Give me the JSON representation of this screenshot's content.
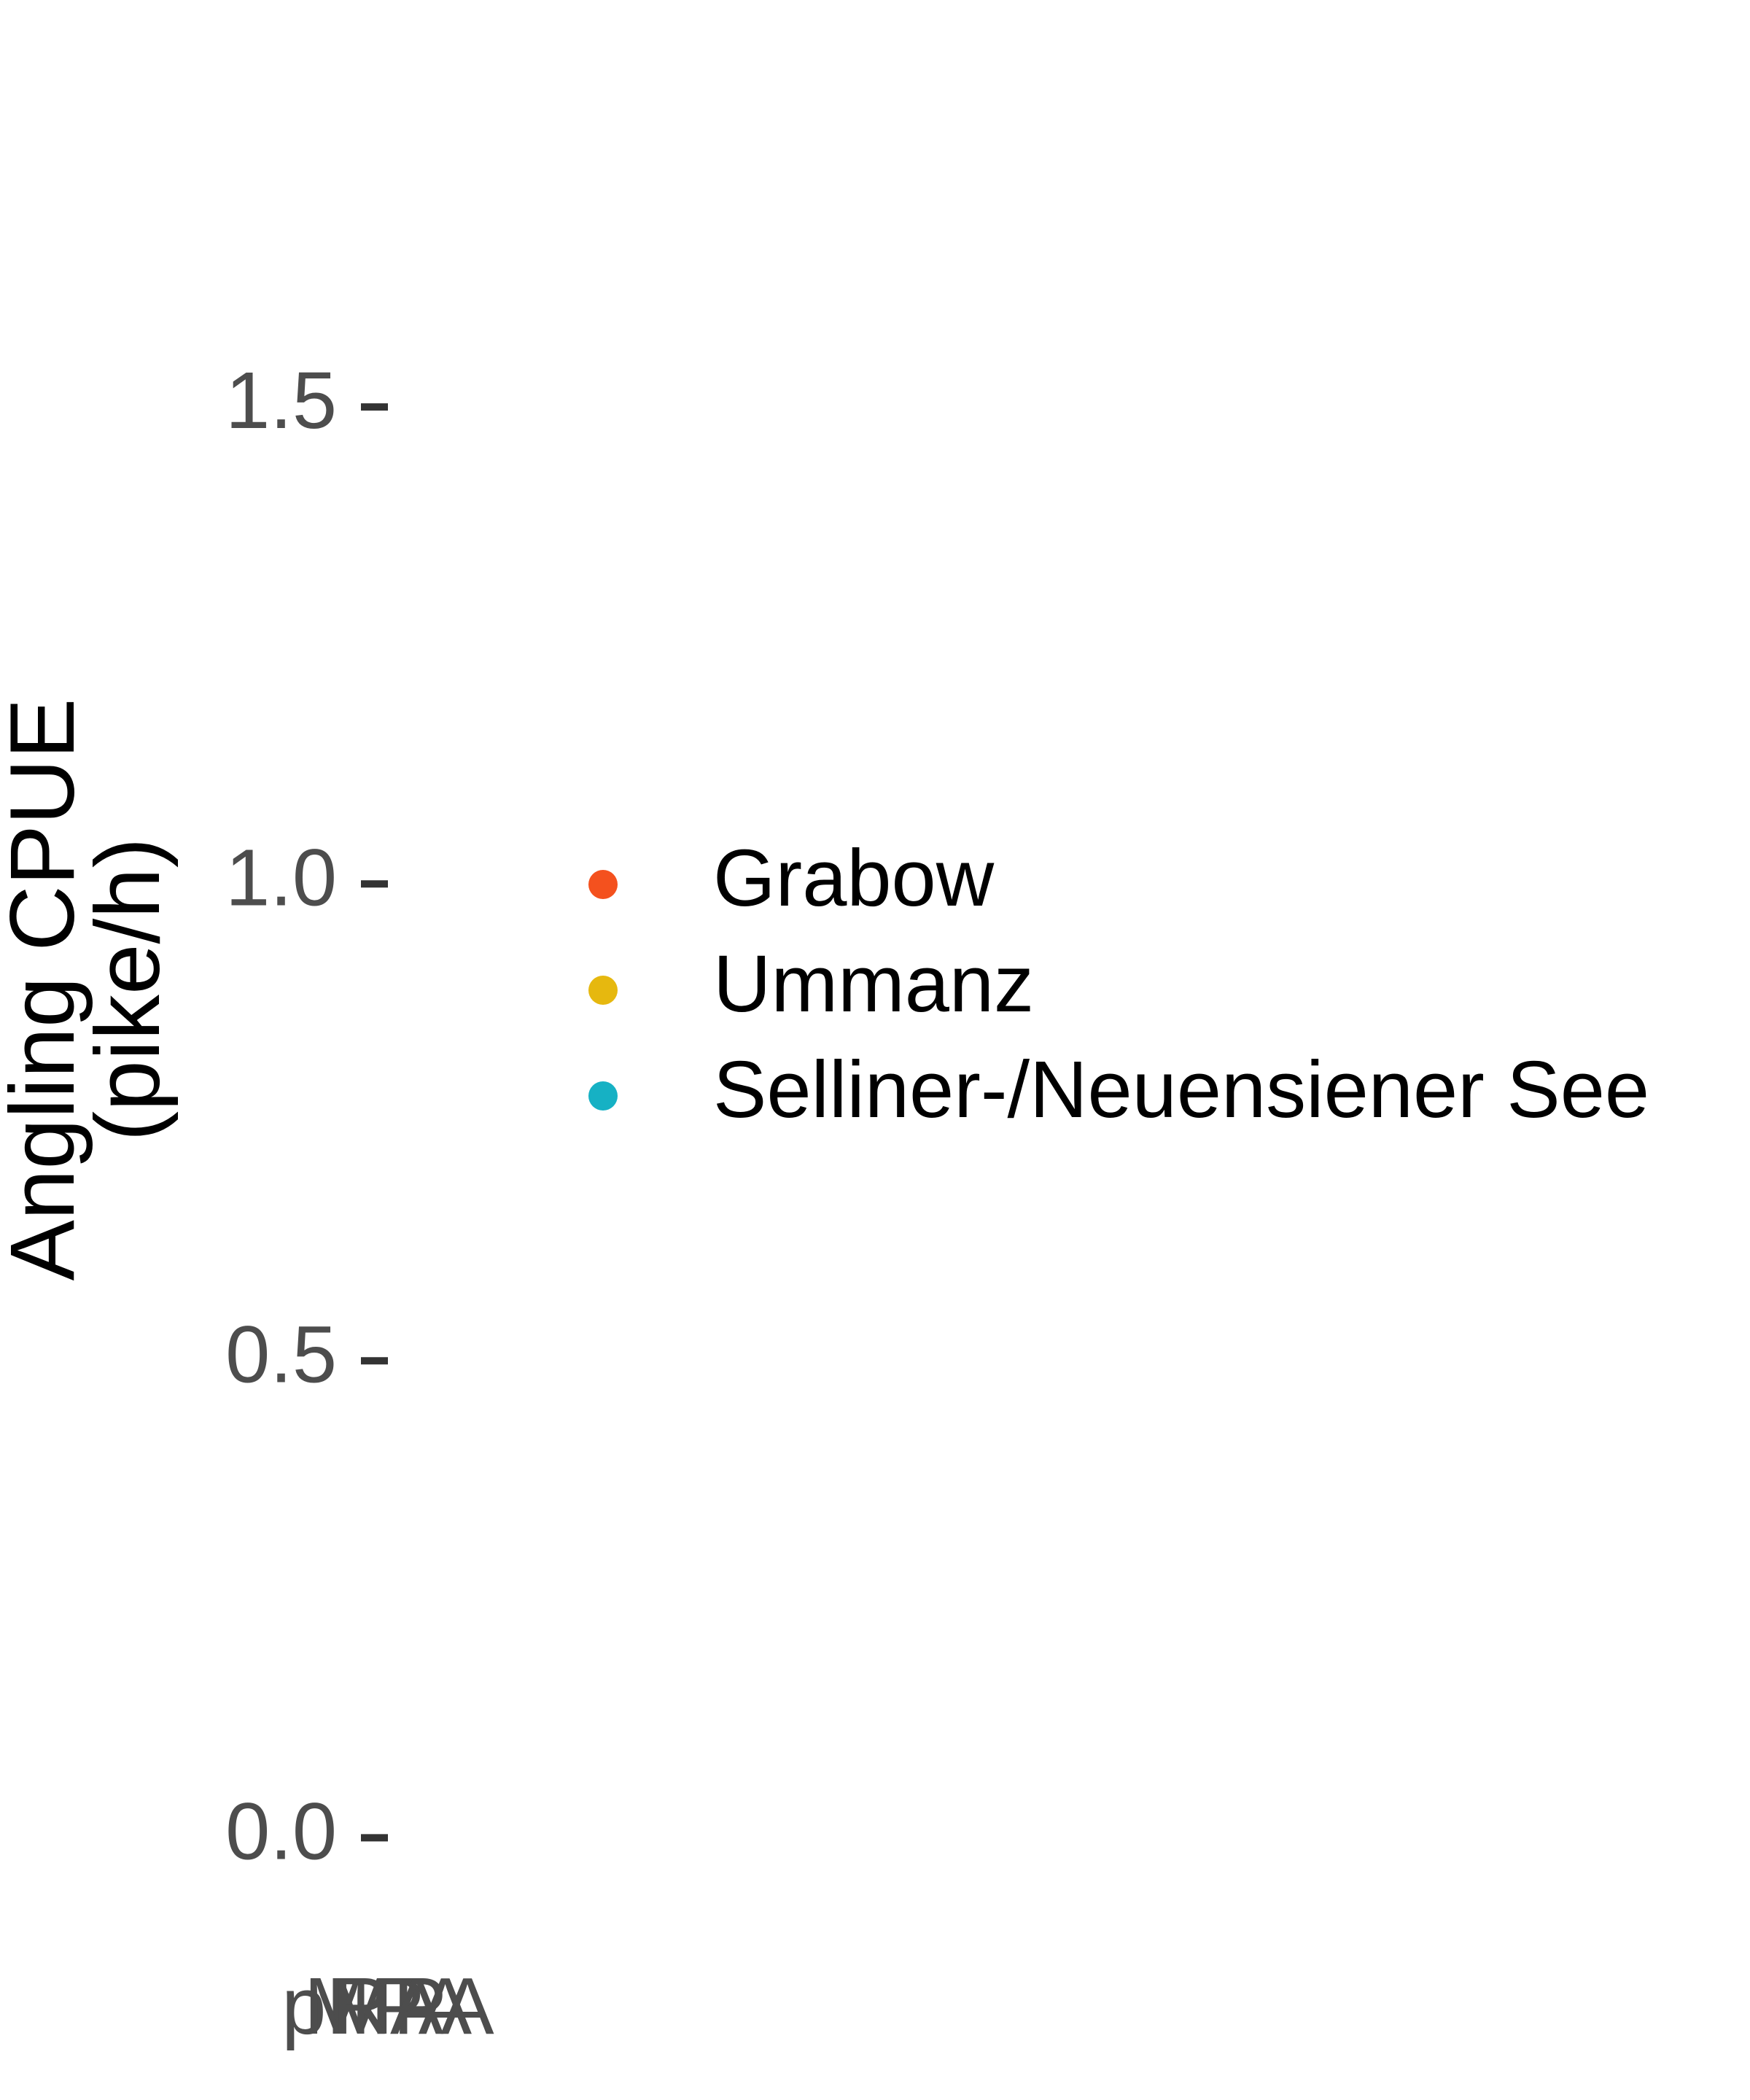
{
  "chart_data": {
    "type": "scatter",
    "ylabel": [
      "Angling CPUE",
      "(pike/h)"
    ],
    "categories": [
      "pMPA",
      "MPA",
      "RA"
    ],
    "series": [
      {
        "name": "Grabow",
        "color": "#f4511e"
      },
      {
        "name": "Ummanz",
        "color": "#e6b80f"
      },
      {
        "name": "Selliner-/Neuensiener See",
        "color": "#16b1c4"
      }
    ],
    "ylim": [
      -0.08,
      1.64
    ],
    "yticks": [
      {
        "value": 0,
        "label": "0.0"
      },
      0.5,
      {
        "value": 1,
        "label": "1.0"
      },
      1.5
    ],
    "legend": "right"
  }
}
